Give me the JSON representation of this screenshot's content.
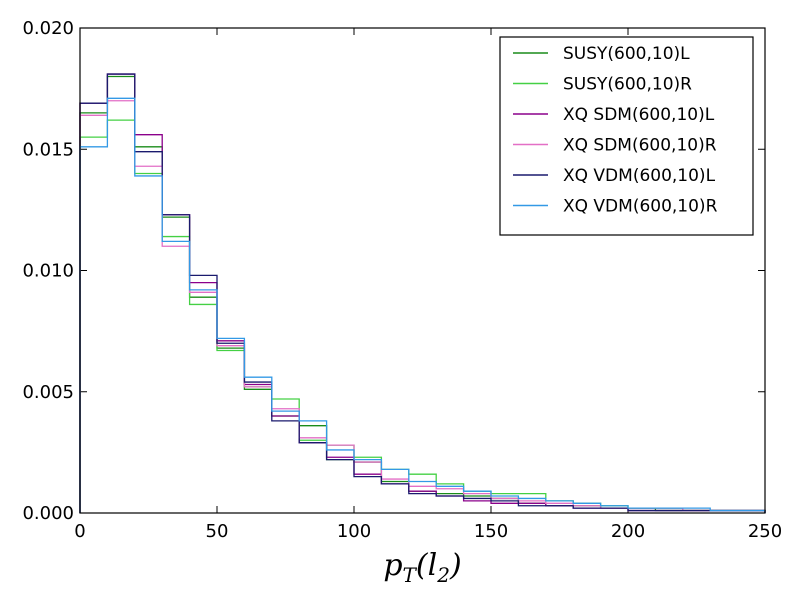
{
  "chart_data": {
    "type": "step-histogram",
    "title": "",
    "xlabel": {
      "main": "p",
      "sub": "T",
      "arg": "(l",
      "argsub": "2",
      "close": ")"
    },
    "ylabel": "",
    "xlim": [
      0,
      250
    ],
    "ylim": [
      0,
      0.02
    ],
    "x_ticks": [
      0,
      50,
      100,
      150,
      200,
      250
    ],
    "x_tick_labels": [
      "0",
      "50",
      "100",
      "150",
      "200",
      "250"
    ],
    "y_ticks": [
      0,
      0.005,
      0.01,
      0.015,
      0.02
    ],
    "y_tick_labels": [
      "0.000",
      "0.005",
      "0.010",
      "0.015",
      "0.020"
    ],
    "bin_edges": [
      0,
      10,
      20,
      30,
      40,
      50,
      60,
      70,
      80,
      90,
      100,
      110,
      120,
      130,
      140,
      150,
      160,
      170,
      180,
      190,
      200,
      210,
      220,
      230,
      240,
      250
    ],
    "legend_position": "top-right",
    "series": [
      {
        "name": "SUSY(600,10)L",
        "color": "#1a8c1a",
        "values": [
          0.0165,
          0.018,
          0.0151,
          0.0122,
          0.0089,
          0.0068,
          0.0051,
          0.004,
          0.0036,
          0.0022,
          0.0021,
          0.0013,
          0.0009,
          0.0008,
          0.0007,
          0.0006,
          0.0004,
          0.0003,
          0.0003,
          0.0002,
          0.0002,
          0.0001,
          0.0001,
          0.0001,
          0.0001
        ]
      },
      {
        "name": "SUSY(600,10)R",
        "color": "#44d044",
        "values": [
          0.0155,
          0.0162,
          0.014,
          0.0114,
          0.0086,
          0.0067,
          0.0052,
          0.0047,
          0.003,
          0.0028,
          0.0023,
          0.0018,
          0.0016,
          0.0012,
          0.0009,
          0.0008,
          0.0008,
          0.0005,
          0.0004,
          0.0003,
          0.0002,
          0.0002,
          0.0001,
          0.0001,
          0.0001
        ]
      },
      {
        "name": "XQ SDM(600,10)L",
        "color": "#8b008b",
        "values": [
          0.0169,
          0.0181,
          0.0156,
          0.0123,
          0.0095,
          0.0071,
          0.0053,
          0.004,
          0.0029,
          0.0023,
          0.0016,
          0.0012,
          0.0009,
          0.0007,
          0.0005,
          0.0004,
          0.0004,
          0.0003,
          0.0002,
          0.0002,
          0.0001,
          0.0001,
          0.0001,
          0.0001,
          0.0001
        ]
      },
      {
        "name": "XQ SDM(600,10)R",
        "color": "#e36fc6",
        "values": [
          0.0164,
          0.017,
          0.0143,
          0.011,
          0.0091,
          0.0069,
          0.0052,
          0.0043,
          0.0031,
          0.0028,
          0.0021,
          0.0014,
          0.0011,
          0.001,
          0.0008,
          0.0006,
          0.0005,
          0.0004,
          0.0003,
          0.0002,
          0.0002,
          0.0002,
          0.0001,
          0.0001,
          0.0001
        ]
      },
      {
        "name": "XQ VDM(600,10)L",
        "color": "#1a1a6e",
        "values": [
          0.0169,
          0.0181,
          0.0149,
          0.0123,
          0.0098,
          0.007,
          0.0054,
          0.0038,
          0.0029,
          0.0022,
          0.0015,
          0.0012,
          0.0008,
          0.0007,
          0.0006,
          0.0005,
          0.0003,
          0.0003,
          0.0002,
          0.0002,
          0.0001,
          0.0001,
          0.0001,
          0.0001,
          0.0001
        ]
      },
      {
        "name": "XQ VDM(600,10)R",
        "color": "#3399e6",
        "values": [
          0.0151,
          0.0171,
          0.0139,
          0.0112,
          0.0092,
          0.0072,
          0.0056,
          0.0042,
          0.0038,
          0.0026,
          0.0022,
          0.0018,
          0.0013,
          0.0011,
          0.0009,
          0.0007,
          0.0006,
          0.0005,
          0.0004,
          0.0003,
          0.0002,
          0.0002,
          0.0002,
          0.0001,
          0.0001
        ]
      }
    ]
  }
}
